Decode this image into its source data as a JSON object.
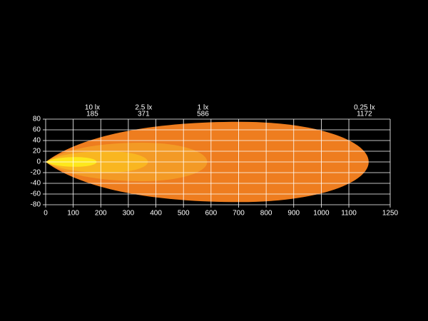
{
  "chart_data": {
    "type": "beam",
    "series": [
      {
        "name": "0.25 lx",
        "color": "#ee7d1f",
        "reach": 1172,
        "halfwidth": 75
      },
      {
        "name": "1 lx",
        "color": "#f39a25",
        "reach": 586,
        "halfwidth": 36
      },
      {
        "name": "2.5 lx",
        "color": "#f9b620",
        "reach": 371,
        "halfwidth": 20
      },
      {
        "name": "10 lx",
        "color": "#fde71c",
        "reach": 185,
        "halfwidth": 9
      }
    ],
    "xlim": [
      0,
      1250
    ],
    "xticks": [
      0,
      100,
      200,
      300,
      400,
      500,
      600,
      700,
      800,
      900,
      1000,
      1100,
      1250
    ],
    "ylim": [
      -80,
      80
    ],
    "yticks": [
      -80,
      -60,
      -40,
      -20,
      0,
      20,
      40,
      60,
      80
    ],
    "grid": true
  }
}
